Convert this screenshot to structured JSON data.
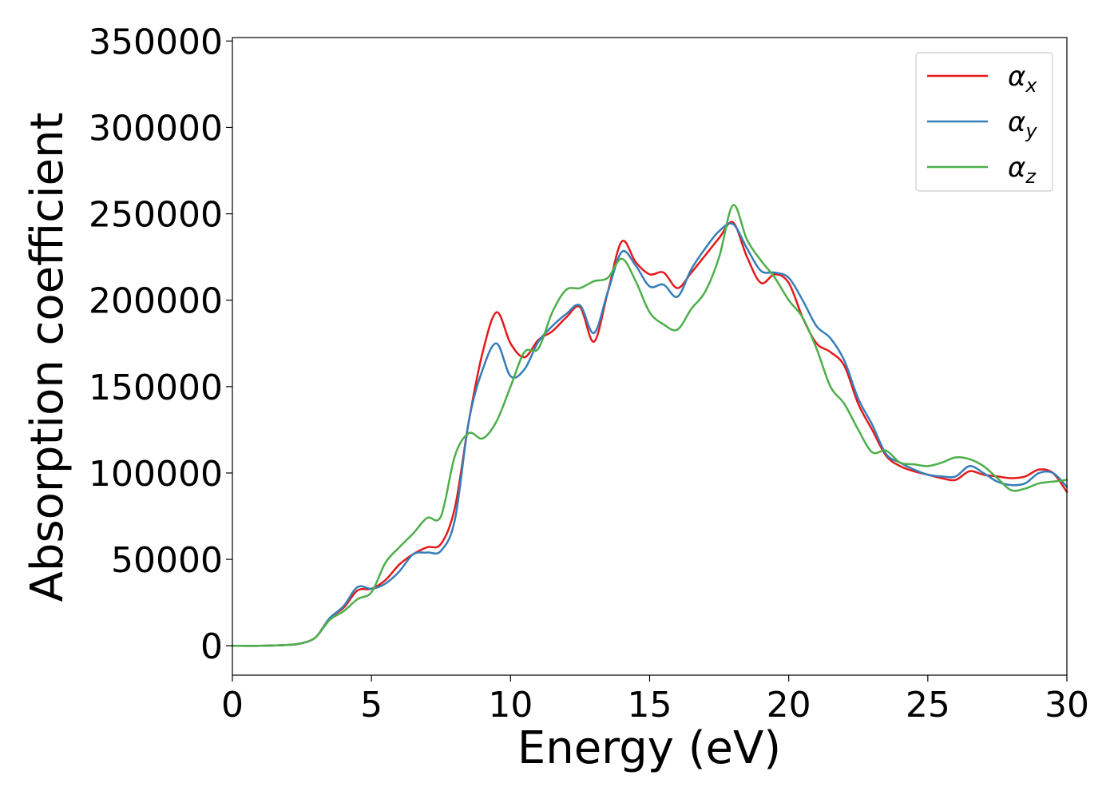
{
  "chart_data": {
    "type": "line",
    "xlabel": "Energy (eV)",
    "ylabel": "Absorption coefficient",
    "xlim": [
      0,
      30
    ],
    "ylim": [
      -17000,
      352000
    ],
    "xticks": [
      0,
      5,
      10,
      15,
      20,
      25,
      30
    ],
    "yticks": [
      0,
      50000,
      100000,
      150000,
      200000,
      250000,
      300000,
      350000
    ],
    "grid": false,
    "legend_position": "top-right",
    "series": [
      {
        "name": "α",
        "subscript": "x",
        "color": "#e41a1c",
        "x": [
          0,
          1,
          2,
          2.5,
          3,
          3.5,
          4,
          4.5,
          5,
          5.5,
          6,
          6.5,
          7,
          7.5,
          8,
          8.5,
          9,
          9.5,
          10,
          10.5,
          11,
          11.5,
          12,
          12.5,
          13,
          13.5,
          14,
          14.5,
          15,
          15.5,
          16,
          16.5,
          17,
          17.5,
          18,
          18.5,
          19,
          19.5,
          20,
          20.5,
          21,
          21.5,
          22,
          22.5,
          23,
          23.5,
          24,
          24.5,
          25,
          25.5,
          26,
          26.5,
          27,
          27.5,
          28,
          28.5,
          29,
          29.5,
          30
        ],
        "values": [
          0,
          0,
          500,
          1500,
          5000,
          16000,
          22000,
          32000,
          33000,
          38000,
          47000,
          53000,
          57000,
          59000,
          80000,
          130000,
          170000,
          193000,
          175000,
          167000,
          177000,
          182000,
          190000,
          196000,
          176000,
          205000,
          234000,
          222000,
          215000,
          216000,
          207000,
          216000,
          226000,
          236000,
          245000,
          225000,
          210000,
          215000,
          210000,
          190000,
          175000,
          170000,
          162000,
          140000,
          125000,
          110000,
          104000,
          101000,
          99000,
          97000,
          96000,
          101000,
          99000,
          98000,
          97000,
          98000,
          102000,
          100000,
          89000
        ]
      },
      {
        "name": "α",
        "subscript": "y",
        "color": "#377eb8",
        "x": [
          0,
          1,
          2,
          2.5,
          3,
          3.5,
          4,
          4.5,
          5,
          5.5,
          6,
          6.5,
          7,
          7.5,
          8,
          8.5,
          9,
          9.5,
          10,
          10.5,
          11,
          11.5,
          12,
          12.5,
          13,
          13.5,
          14,
          14.5,
          15,
          15.5,
          16,
          16.5,
          17,
          17.5,
          18,
          18.5,
          19,
          19.5,
          20,
          20.5,
          21,
          21.5,
          22,
          22.5,
          23,
          23.5,
          24,
          24.5,
          25,
          25.5,
          26,
          26.5,
          27,
          27.5,
          28,
          28.5,
          29,
          29.5,
          30
        ],
        "values": [
          0,
          0,
          500,
          1500,
          5000,
          16000,
          23000,
          34000,
          33000,
          36000,
          43000,
          53000,
          54000,
          55000,
          73000,
          130000,
          160000,
          175000,
          156000,
          160000,
          176000,
          185000,
          192000,
          197000,
          181000,
          205000,
          228000,
          220000,
          208000,
          209000,
          202000,
          218000,
          230000,
          240000,
          244000,
          230000,
          217000,
          216000,
          213000,
          200000,
          185000,
          178000,
          165000,
          143000,
          128000,
          111000,
          106000,
          102000,
          99000,
          98000,
          98000,
          104000,
          100000,
          95000,
          93000,
          94000,
          100000,
          100000,
          92000
        ]
      },
      {
        "name": "α",
        "subscript": "z",
        "color": "#4daf4a",
        "x": [
          0,
          1,
          2,
          2.5,
          3,
          3.5,
          4,
          4.5,
          5,
          5.5,
          6,
          6.5,
          7,
          7.5,
          8,
          8.5,
          9,
          9.5,
          10,
          10.5,
          11,
          11.5,
          12,
          12.5,
          13,
          13.5,
          14,
          14.5,
          15,
          15.5,
          16,
          16.5,
          17,
          17.5,
          18,
          18.5,
          19,
          19.5,
          20,
          20.5,
          21,
          21.5,
          22,
          22.5,
          23,
          23.5,
          24,
          24.5,
          25,
          25.5,
          26,
          26.5,
          27,
          27.5,
          28,
          28.5,
          29,
          29.5,
          30
        ],
        "values": [
          0,
          0,
          500,
          1500,
          5000,
          15000,
          20000,
          27000,
          31000,
          48000,
          57000,
          65000,
          74000,
          75000,
          110000,
          123000,
          120000,
          130000,
          150000,
          170000,
          172000,
          193000,
          206000,
          207000,
          211000,
          213000,
          224000,
          211000,
          193000,
          186000,
          183000,
          195000,
          205000,
          225000,
          255000,
          235000,
          223000,
          213000,
          200000,
          190000,
          172000,
          150000,
          140000,
          125000,
          112000,
          113000,
          106000,
          105000,
          104000,
          106000,
          109000,
          108000,
          104000,
          97000,
          90000,
          91000,
          94000,
          95000,
          96000
        ]
      }
    ]
  }
}
